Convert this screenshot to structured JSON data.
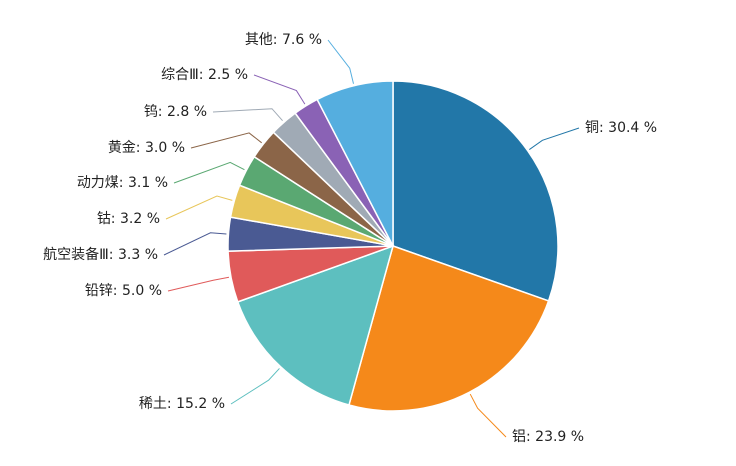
{
  "chart_data": {
    "type": "pie",
    "values": [
      30.4,
      23.9,
      15.2,
      5.0,
      3.3,
      3.2,
      3.1,
      3.0,
      2.8,
      2.5,
      7.6
    ],
    "value_labels": [
      "铜: 30.4 %",
      "铝: 23.9 %",
      "稀土: 15.2 %",
      "铅锌: 5.0 %",
      "航空装备Ⅲ: 3.3 %",
      "钴: 3.2 %",
      "动力煤: 3.1 %",
      "黄金: 3.0 %",
      "钨: 2.8 %",
      "综合Ⅲ: 2.5 %",
      "其他: 7.6 %"
    ],
    "colors": [
      "#2277a8",
      "#f5891a",
      "#5dbfbf",
      "#e05a5a",
      "#4a5a93",
      "#e8c65a",
      "#5aa872",
      "#8b6548",
      "#a0aab5",
      "#8a62b5",
      "#55aedf"
    ]
  }
}
